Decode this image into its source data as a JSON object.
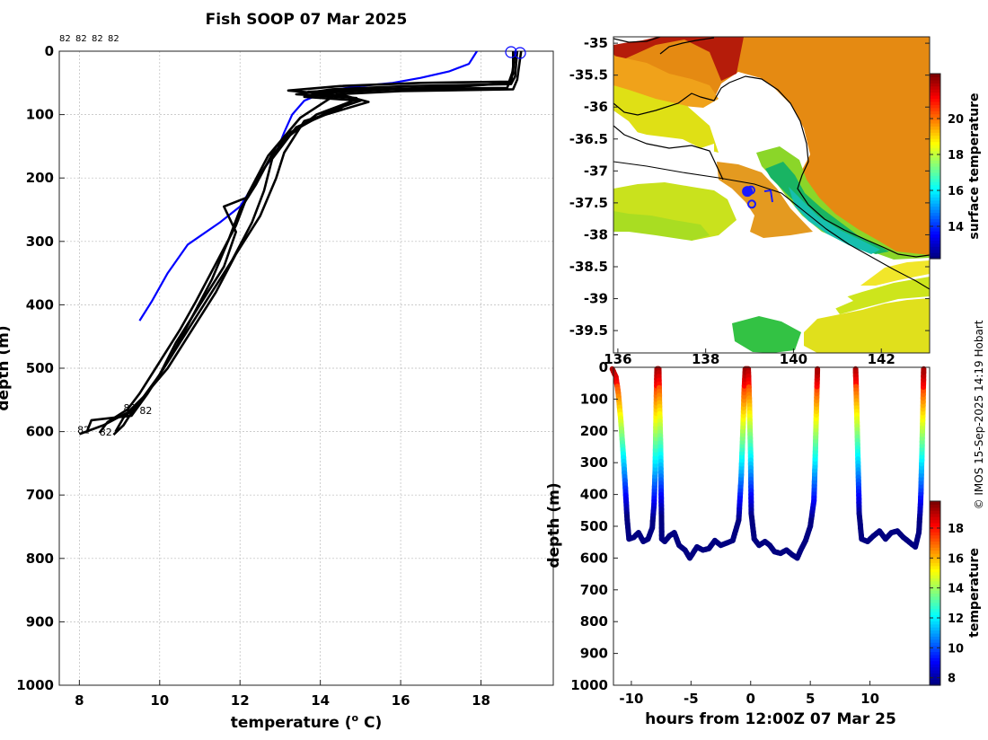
{
  "title": "Fish SOOP 07 Mar 2025",
  "credit": "© IMOS 15-Sep-2025 14:19 Hobart",
  "chart_data": [
    {
      "type": "line",
      "name": "profile",
      "xlabel": "temperature (o C)",
      "xlabel_main": "temperature (",
      "xlabel_sup": "o",
      "xlabel_tail": " C)",
      "ylabel": "depth (m)",
      "xlim": [
        7.5,
        19.8
      ],
      "ylim": [
        1000,
        0
      ],
      "xticks": [
        8,
        10,
        12,
        14,
        16,
        18
      ],
      "yticks": [
        0,
        100,
        200,
        300,
        400,
        500,
        600,
        700,
        800,
        900,
        1000
      ],
      "grid": true,
      "top_labels": [
        "82",
        "82",
        "82",
        "82"
      ],
      "tag_labels": [
        {
          "t": "82",
          "x": 9.1,
          "y": 568
        },
        {
          "t": "82",
          "x": 9.5,
          "y": 572
        },
        {
          "t": "82",
          "x": 7.95,
          "y": 603
        },
        {
          "t": "82",
          "x": 8.5,
          "y": 606
        }
      ],
      "series": [
        {
          "name": "reference",
          "color": "#0000ff",
          "points": [
            [
              17.9,
              0
            ],
            [
              17.7,
              20
            ],
            [
              17.2,
              32
            ],
            [
              16.5,
              42
            ],
            [
              15.8,
              50
            ],
            [
              15,
              55
            ],
            [
              14.2,
              62
            ],
            [
              13.6,
              78
            ],
            [
              13.3,
              100
            ],
            [
              13.1,
              128
            ],
            [
              12.9,
              160
            ],
            [
              12.6,
              185
            ],
            [
              12.3,
              215
            ],
            [
              12,
              245
            ],
            [
              11.5,
              270
            ],
            [
              10.7,
              305
            ],
            [
              10.2,
              350
            ],
            [
              9.8,
              395
            ],
            [
              9.5,
              425
            ]
          ]
        },
        {
          "name": "cast 1",
          "color": "#000000",
          "points": [
            [
              18.85,
              0
            ],
            [
              18.8,
              30
            ],
            [
              18.7,
              48
            ],
            [
              16.5,
              50
            ],
            [
              14.5,
              55
            ],
            [
              13.2,
              62
            ],
            [
              14.6,
              70
            ],
            [
              15.2,
              80
            ],
            [
              13.6,
              110
            ],
            [
              13.1,
              160
            ],
            [
              12.9,
              200
            ],
            [
              12.5,
              260
            ],
            [
              11.9,
              320
            ],
            [
              11.4,
              380
            ],
            [
              10.7,
              450
            ],
            [
              10.2,
              500
            ],
            [
              9.8,
              530
            ],
            [
              9.4,
              560
            ],
            [
              9.1,
              590
            ],
            [
              8.85,
              605
            ]
          ]
        },
        {
          "name": "cast 2",
          "color": "#000000",
          "points": [
            [
              18.9,
              0
            ],
            [
              18.85,
              40
            ],
            [
              18.75,
              52
            ],
            [
              16.2,
              55
            ],
            [
              14.3,
              60
            ],
            [
              13.4,
              68
            ],
            [
              14.9,
              74
            ],
            [
              14.5,
              90
            ],
            [
              13.4,
              120
            ],
            [
              12.8,
              170
            ],
            [
              12.6,
              220
            ],
            [
              12.3,
              270
            ],
            [
              11.8,
              330
            ],
            [
              11.2,
              390
            ],
            [
              10.6,
              450
            ],
            [
              10.1,
              500
            ],
            [
              9.7,
              540
            ],
            [
              9.3,
              575
            ],
            [
              8.3,
              582
            ],
            [
              8.2,
              598
            ]
          ]
        },
        {
          "name": "cast 3",
          "color": "#000000",
          "points": [
            [
              18.8,
              0
            ],
            [
              18.8,
              35
            ],
            [
              18.65,
              58
            ],
            [
              15.8,
              60
            ],
            [
              14,
              66
            ],
            [
              13.6,
              72
            ],
            [
              15,
              78
            ],
            [
              14.2,
              95
            ],
            [
              13.2,
              130
            ],
            [
              12.6,
              185
            ],
            [
              12.2,
              230
            ],
            [
              11.6,
              245
            ],
            [
              11.9,
              285
            ],
            [
              11.6,
              340
            ],
            [
              11,
              400
            ],
            [
              10.4,
              460
            ],
            [
              10,
              510
            ],
            [
              9.6,
              545
            ],
            [
              9.2,
              570
            ],
            [
              8.6,
              590
            ],
            [
              8,
              604
            ]
          ]
        },
        {
          "name": "cast 4",
          "color": "#000000",
          "points": [
            [
              19,
              0
            ],
            [
              18.9,
              45
            ],
            [
              18.8,
              60
            ],
            [
              16,
              63
            ],
            [
              14.4,
              68
            ],
            [
              14.9,
              76
            ],
            [
              13.9,
              100
            ],
            [
              12.9,
              150
            ],
            [
              12.4,
              210
            ],
            [
              12,
              250
            ],
            [
              11.7,
              300
            ],
            [
              11.3,
              360
            ],
            [
              10.8,
              420
            ],
            [
              10.3,
              480
            ],
            [
              9.9,
              520
            ],
            [
              9.5,
              555
            ],
            [
              9.1,
              578
            ],
            [
              8.9,
              600
            ]
          ]
        },
        {
          "name": "cast 5",
          "color": "#000000",
          "points": [
            [
              18.85,
              0
            ],
            [
              18.75,
              50
            ],
            [
              17.5,
              56
            ],
            [
              15.5,
              60
            ],
            [
              13.7,
              64
            ],
            [
              14.3,
              72
            ],
            [
              13.5,
              105
            ],
            [
              12.7,
              165
            ],
            [
              12.2,
              225
            ],
            [
              11.9,
              275
            ],
            [
              11.4,
              335
            ],
            [
              10.9,
              395
            ],
            [
              10.5,
              440
            ],
            [
              9.9,
              500
            ],
            [
              9.5,
              540
            ],
            [
              9.2,
              565
            ],
            [
              8.7,
              585
            ],
            [
              8.5,
              602
            ]
          ]
        }
      ]
    },
    {
      "type": "heatmap",
      "name": "map",
      "xlim": [
        135.9,
        143.1
      ],
      "ylim": [
        -39.85,
        -34.9
      ],
      "xticks": [
        136,
        138,
        140,
        142
      ],
      "yticks": [
        -35,
        -35.5,
        -36,
        -36.5,
        -37,
        -37.5,
        -38,
        -38.5,
        -39,
        -39.5
      ],
      "ytick_labels": [
        "-35",
        "-35.5",
        "-36",
        "-36.5",
        "-37",
        "-37.5",
        "-38",
        "-38.5",
        "-39",
        "-39.5"
      ],
      "colorbar": {
        "label": "surface temperature",
        "vmin": 12.2,
        "vmax": 22.5,
        "ticks": [
          14,
          16,
          18,
          20
        ]
      },
      "track_markers": [
        [
          138.95,
          -37.32
        ],
        [
          139.03,
          -37.3
        ],
        [
          139.05,
          -37.52
        ]
      ]
    },
    {
      "type": "scatter",
      "name": "section",
      "xlabel": "hours from 12:00Z 07 Mar 25",
      "ylabel": "depth (m)",
      "xlim": [
        -11.5,
        15
      ],
      "ylim": [
        1000,
        0
      ],
      "xticks": [
        -10,
        -5,
        0,
        5,
        10
      ],
      "yticks": [
        0,
        100,
        200,
        300,
        400,
        500,
        600,
        700,
        800,
        900,
        1000
      ],
      "colorbar": {
        "label": "temperature",
        "vmin": 7.5,
        "vmax": 19.8,
        "ticks": [
          8,
          10,
          12,
          14,
          16,
          18
        ]
      },
      "track_points": [
        [
          -11.6,
          5
        ],
        [
          -11.3,
          30
        ],
        [
          -11.1,
          80
        ],
        [
          -10.9,
          160
        ],
        [
          -10.7,
          260
        ],
        [
          -10.5,
          380
        ],
        [
          -10.35,
          480
        ],
        [
          -10.2,
          540
        ],
        [
          -9.8,
          535
        ],
        [
          -9.4,
          520
        ],
        [
          -9,
          548
        ],
        [
          -8.6,
          540
        ],
        [
          -8.25,
          505
        ],
        [
          -8.1,
          430
        ],
        [
          -8,
          320
        ],
        [
          -7.95,
          200
        ],
        [
          -7.9,
          90
        ],
        [
          -7.85,
          5
        ],
        [
          -7.7,
          5
        ],
        [
          -7.65,
          100
        ],
        [
          -7.55,
          250
        ],
        [
          -7.5,
          400
        ],
        [
          -7.45,
          540
        ],
        [
          -7.2,
          548
        ],
        [
          -6.8,
          530
        ],
        [
          -6.4,
          520
        ],
        [
          -6,
          560
        ],
        [
          -5.5,
          575
        ],
        [
          -5.1,
          600
        ],
        [
          -4.5,
          565
        ],
        [
          -4,
          575
        ],
        [
          -3.5,
          570
        ],
        [
          -3,
          545
        ],
        [
          -2.5,
          560
        ],
        [
          -1.5,
          545
        ],
        [
          -1,
          480
        ],
        [
          -0.8,
          350
        ],
        [
          -0.65,
          200
        ],
        [
          -0.55,
          80
        ],
        [
          -0.45,
          5
        ],
        [
          -0.2,
          5
        ],
        [
          -0.1,
          120
        ],
        [
          0,
          280
        ],
        [
          0.05,
          460
        ],
        [
          0.3,
          540
        ],
        [
          0.7,
          560
        ],
        [
          1.2,
          548
        ],
        [
          1.6,
          560
        ],
        [
          2,
          580
        ],
        [
          2.5,
          585
        ],
        [
          3,
          575
        ],
        [
          3.5,
          590
        ],
        [
          3.9,
          600
        ],
        [
          4.2,
          575
        ],
        [
          4.6,
          545
        ],
        [
          5,
          500
        ],
        [
          5.3,
          420
        ],
        [
          5.4,
          300
        ],
        [
          5.5,
          150
        ],
        [
          5.6,
          5
        ],
        [
          8.8,
          5
        ],
        [
          8.9,
          150
        ],
        [
          9,
          300
        ],
        [
          9.1,
          460
        ],
        [
          9.3,
          540
        ],
        [
          9.8,
          548
        ],
        [
          10.3,
          530
        ],
        [
          10.8,
          515
        ],
        [
          11.3,
          540
        ],
        [
          11.8,
          520
        ],
        [
          12.3,
          515
        ],
        [
          12.8,
          535
        ],
        [
          13.3,
          550
        ],
        [
          13.8,
          565
        ],
        [
          14.1,
          520
        ],
        [
          14.25,
          420
        ],
        [
          14.35,
          280
        ],
        [
          14.45,
          120
        ],
        [
          14.5,
          5
        ]
      ]
    }
  ]
}
